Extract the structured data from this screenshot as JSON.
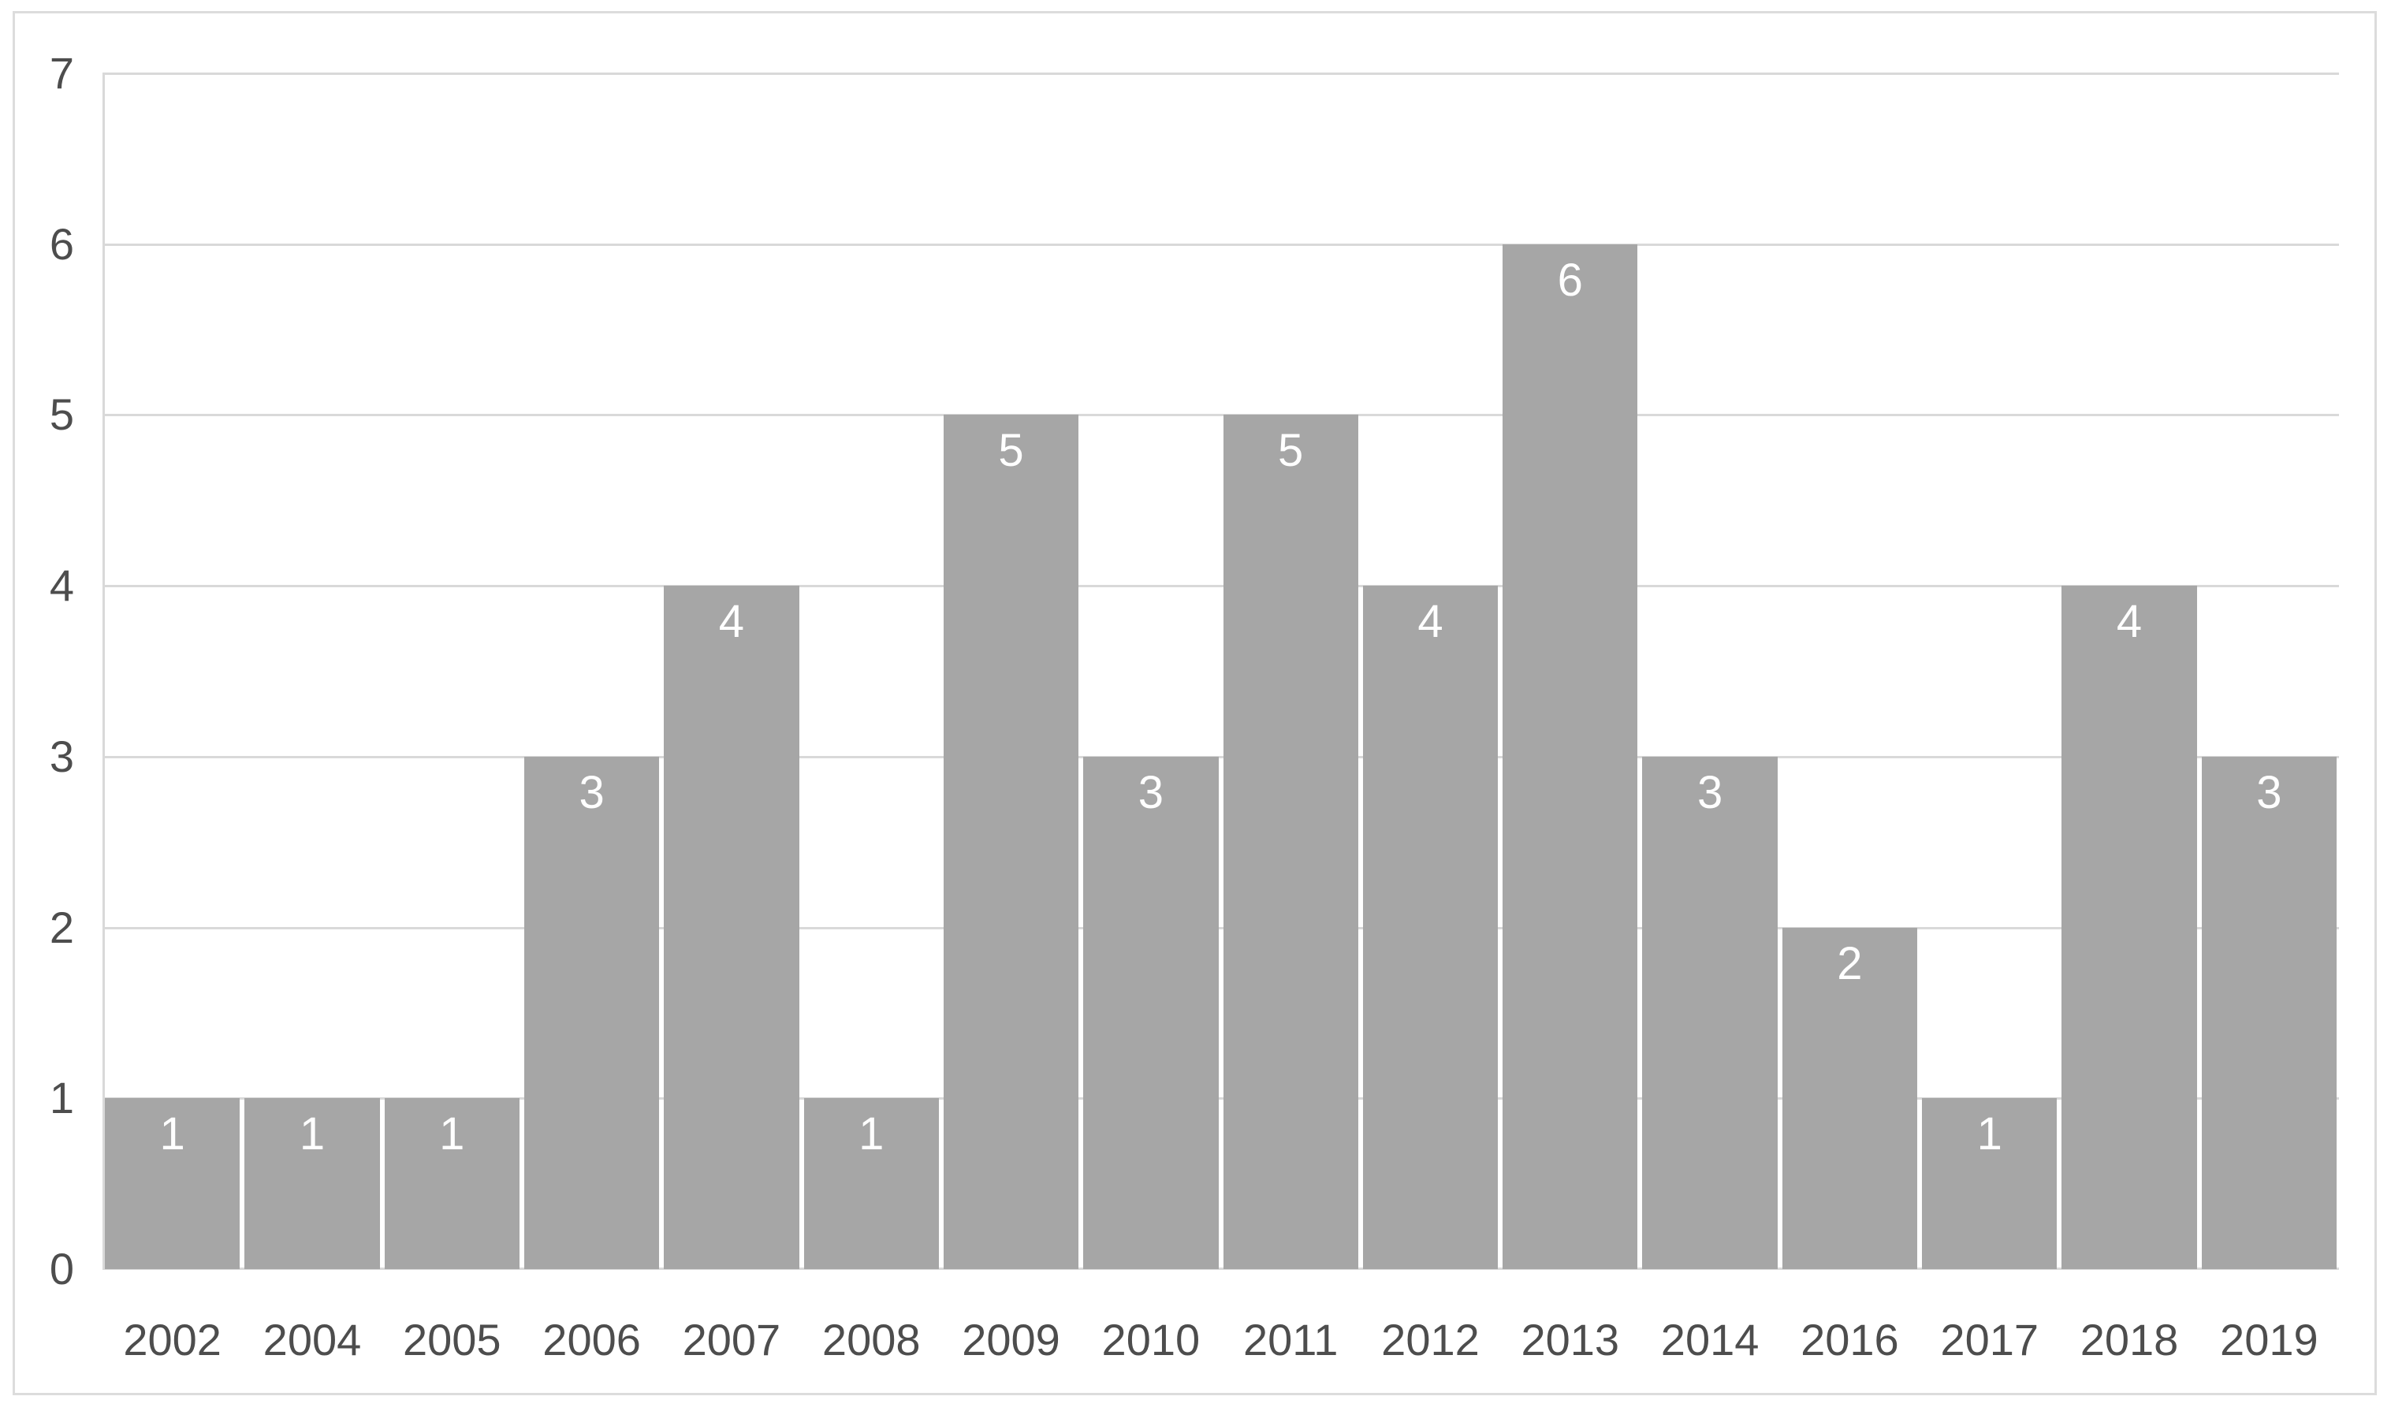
{
  "chart_data": {
    "type": "bar",
    "categories": [
      "2002",
      "2004",
      "2005",
      "2006",
      "2007",
      "2008",
      "2009",
      "2010",
      "2011",
      "2012",
      "2013",
      "2014",
      "2016",
      "2017",
      "2018",
      "2019"
    ],
    "values": [
      1,
      1,
      1,
      3,
      4,
      1,
      5,
      3,
      5,
      4,
      6,
      3,
      2,
      1,
      4,
      3
    ],
    "title": "",
    "xlabel": "",
    "ylabel": "",
    "ylim": [
      0,
      7
    ],
    "yticks": [
      0,
      1,
      2,
      3,
      4,
      5,
      6,
      7
    ],
    "grid": true,
    "legend_position": "none",
    "data_labels_position": "inside-end",
    "colors": {
      "bar_fill": "#a6a6a6",
      "data_label_text": "#ffffff",
      "axis_text": "#4d4d4d",
      "gridline": "#d9d9d9",
      "axis_line": "#d9d9d9",
      "frame_border": "#dcdcdc",
      "background": "#ffffff"
    }
  }
}
